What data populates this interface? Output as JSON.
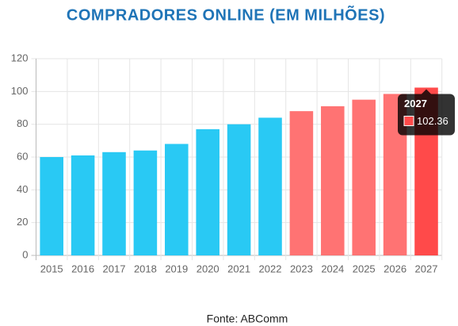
{
  "chart_data": {
    "type": "bar",
    "title": "COMPRADORES ONLINE (EM MILHÕES)",
    "categories": [
      "2015",
      "2016",
      "2017",
      "2018",
      "2019",
      "2020",
      "2021",
      "2022",
      "2023",
      "2024",
      "2025",
      "2026",
      "2027"
    ],
    "values": [
      60,
      61,
      63,
      64,
      68,
      77,
      80,
      84,
      88,
      91,
      95,
      98.5,
      102.36
    ],
    "colors": [
      "#29c9f4",
      "#29c9f4",
      "#29c9f4",
      "#29c9f4",
      "#29c9f4",
      "#29c9f4",
      "#29c9f4",
      "#29c9f4",
      "#ff7373",
      "#ff7373",
      "#ff7373",
      "#ff7373",
      "#ff4a4a"
    ],
    "ylim": [
      0,
      120
    ],
    "yticks": [
      0,
      20,
      40,
      60,
      80,
      100,
      120
    ],
    "grid": true,
    "tooltip_index": 12,
    "source": "Fonte: ABComm"
  }
}
